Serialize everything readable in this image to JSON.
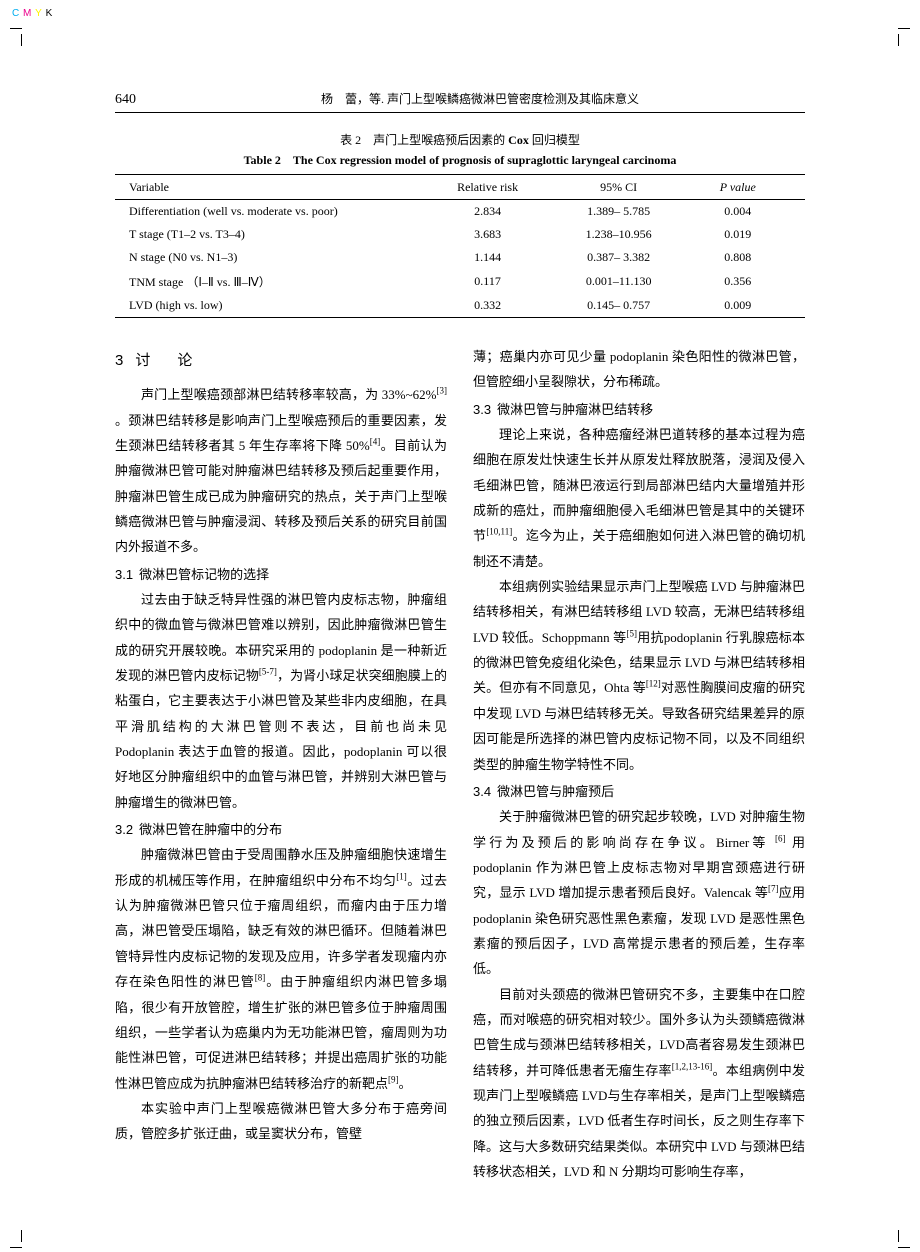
{
  "printMarks": {
    "c": "C",
    "m": "M",
    "y": "Y",
    "k": "K",
    "cColor": "#00aeef",
    "mColor": "#ec008c",
    "yColor": "#fff200",
    "kColor": "#000000"
  },
  "header": {
    "pageNumber": "640",
    "runningTitle": "杨　蕾，等. 声门上型喉鳞癌微淋巴管密度检测及其临床意义"
  },
  "table": {
    "captionZhPrefix": "表 2　声门上型喉癌预后因素的 ",
    "captionZhBold": "Cox",
    "captionZhSuffix": " 回归模型",
    "captionEn": "Table 2　The Cox regression model of prognosis of supraglottic laryngeal carcinoma",
    "columns": [
      "Variable",
      "Relative risk",
      "95% CI",
      "P value"
    ],
    "colHeaderItalic": [
      false,
      false,
      false,
      true
    ],
    "rows": [
      [
        "Differentiation (well vs. moderate vs. poor)",
        "2.834",
        "1.389– 5.785",
        "0.004"
      ],
      [
        "T stage (T1–2 vs. T3–4)",
        "3.683",
        "1.238–10.956",
        "0.019"
      ],
      [
        "N stage (N0 vs. N1–3)",
        "1.144",
        "0.387– 3.382",
        "0.808"
      ],
      [
        "TNM stage （Ⅰ–Ⅱ vs. Ⅲ–Ⅳ）",
        "0.117",
        "0.001–11.130",
        "0.356"
      ],
      [
        "LVD (high vs. low)",
        "0.332",
        "0.145– 0.757",
        "0.009"
      ]
    ],
    "colWidths": [
      "46%",
      "16%",
      "22%",
      "16%"
    ]
  },
  "sectionHead": {
    "num": "3",
    "title": "讨　论"
  },
  "left": {
    "p1": "声门上型喉癌颈部淋巴结转移率较高，为 33%~62%[3] 。颈淋巴结转移是影响声门上型喉癌预后的重要因素，发生颈淋巴结转移者其 5 年生存率将下降 50%[4]。目前认为肿瘤微淋巴管可能对肿瘤淋巴结转移及预后起重要作用，肿瘤淋巴管生成已成为肿瘤研究的热点，关于声门上型喉鳞癌微淋巴管与肿瘤浸润、转移及预后关系的研究目前国内外报道不多。",
    "s31num": "3.1",
    "s31title": "微淋巴管标记物的选择",
    "p2": "过去由于缺乏特异性强的淋巴管内皮标志物，肿瘤组织中的微血管与微淋巴管难以辨别，因此肿瘤微淋巴管生成的研究开展较晚。本研究采用的 podoplanin 是一种新近发现的淋巴管内皮标记物[5-7]，为肾小球足状突细胞膜上的粘蛋白，它主要表达于小淋巴管及某些非内皮细胞，在具平滑肌结构的大淋巴管则不表达，目前也尚未见Podoplanin 表达于血管的报道。因此，podoplanin 可以很好地区分肿瘤组织中的血管与淋巴管，并辨别大淋巴管与肿瘤增生的微淋巴管。",
    "s32num": "3.2",
    "s32title": "微淋巴管在肿瘤中的分布",
    "p3": "肿瘤微淋巴管由于受周围静水压及肿瘤细胞快速增生形成的机械压等作用，在肿瘤组织中分布不均匀[1]。过去认为肿瘤微淋巴管只位于瘤周组织，而瘤内由于压力增高，淋巴管受压塌陷，缺乏有效的淋巴循环。但随着淋巴管特异性内皮标记物的发现及应用，许多学者发现瘤内亦存在染色阳性的淋巴管[8]。由于肿瘤组织内淋巴管多塌陷，很少有开放管腔，增生扩张的淋巴管多位于肿瘤周围组织，一些学者认为癌巢内为无功能淋巴管，瘤周则为功能性淋巴管，可促进淋巴结转移；并提出癌周扩张的功能性淋巴管应成为抗肿瘤淋巴结转移治疗的新靶点[9]。",
    "p4": "本实验中声门上型喉癌微淋巴管大多分布于癌旁间质，管腔多扩张迂曲，或呈窦状分布，管壁"
  },
  "right": {
    "p0": "薄；癌巢内亦可见少量 podoplanin 染色阳性的微淋巴管，但管腔细小呈裂隙状，分布稀疏。",
    "s33num": "3.3",
    "s33title": "微淋巴管与肿瘤淋巴结转移",
    "p1": "理论上来说，各种癌瘤经淋巴道转移的基本过程为癌细胞在原发灶快速生长并从原发灶释放脱落，浸润及侵入毛细淋巴管，随淋巴液运行到局部淋巴结内大量增殖并形成新的癌灶，而肿瘤细胞侵入毛细淋巴管是其中的关键环节[10,11]。迄今为止，关于癌细胞如何进入淋巴管的确切机制还不清楚。",
    "p2": "本组病例实验结果显示声门上型喉癌 LVD 与肿瘤淋巴结转移相关，有淋巴结转移组 LVD 较高，无淋巴结转移组 LVD 较低。Schoppmann 等[5]用抗podoplanin 行乳腺癌标本的微淋巴管免疫组化染色，结果显示 LVD 与淋巴结转移相关。但亦有不同意见，Ohta 等[12]对恶性胸膜间皮瘤的研究中发现 LVD 与淋巴结转移无关。导致各研究结果差异的原因可能是所选择的淋巴管内皮标记物不同，以及不同组织类型的肿瘤生物学特性不同。",
    "s34num": "3.4",
    "s34title": "微淋巴管与肿瘤预后",
    "p3": "关于肿瘤微淋巴管的研究起步较晚，LVD 对肿瘤生物学行为及预后的影响尚存在争议。Birner等 [6] 用 podoplanin 作为淋巴管上皮标志物对早期宫颈癌进行研究，显示 LVD 增加提示患者预后良好。Valencak 等[7]应用 podoplanin 染色研究恶性黑色素瘤，发现 LVD 是恶性黑色素瘤的预后因子，LVD 高常提示患者的预后差，生存率低。",
    "p4": "目前对头颈癌的微淋巴管研究不多，主要集中在口腔癌，而对喉癌的研究相对较少。国外多认为头颈鳞癌微淋巴管生成与颈淋巴结转移相关，LVD高者容易发生颈淋巴结转移，并可降低患者无瘤生存率[1,2,13-16]。本组病例中发现声门上型喉鳞癌 LVD与生存率相关，是声门上型喉鳞癌的独立预后因素，LVD 低者生存时间长，反之则生存率下降。这与大多数研究结果类似。本研究中 LVD 与颈淋巴结转移状态相关，LVD 和 N 分期均可影响生存率，"
  }
}
